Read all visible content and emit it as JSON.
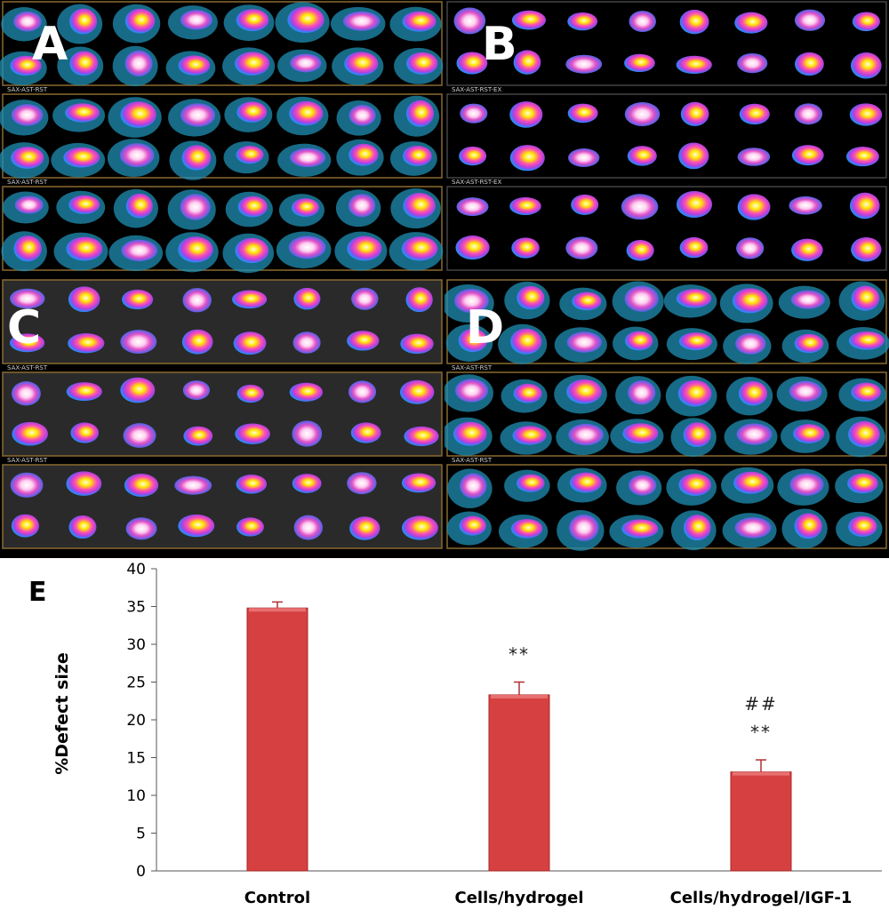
{
  "panels": {
    "a": {
      "letter": "A",
      "label": "SAX-AST-RST"
    },
    "b": {
      "letter": "B",
      "label": "SAX-AST-RST-EX"
    },
    "c": {
      "letter": "C",
      "label": "SAX-AST-RST"
    },
    "d": {
      "letter": "D",
      "label": "SAX-AST-RST"
    }
  },
  "chart_data": {
    "type": "bar",
    "panel_letter": "E",
    "categories": [
      "Control",
      "Cells/hydrogel",
      "Cells/hydrogel/IGF-1"
    ],
    "values": [
      34.8,
      23.3,
      13.1
    ],
    "errors": [
      0.8,
      1.7,
      1.6
    ],
    "annotations": [
      {
        "category": "Cells/hydrogel",
        "lines": [
          "**"
        ]
      },
      {
        "category": "Cells/hydrogel/IGF-1",
        "lines": [
          "##",
          "**"
        ]
      }
    ],
    "ylabel": "%Defect size",
    "ylim": [
      0,
      40
    ],
    "yticks": [
      0,
      5,
      10,
      15,
      20,
      25,
      30,
      35,
      40
    ],
    "bar_color": "#d64040",
    "grid": false
  }
}
